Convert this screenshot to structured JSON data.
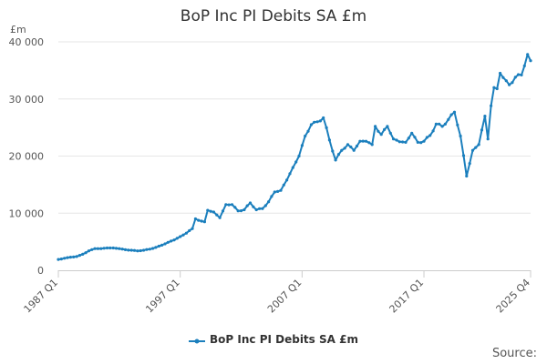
{
  "chart_data": {
    "type": "line",
    "title": "BoP Inc PI Debits SA £m",
    "ylabel": "£m",
    "ylim": [
      0,
      40000
    ],
    "yticks": [
      {
        "value": 0,
        "label": "0"
      },
      {
        "value": 10000,
        "label": "10 000"
      },
      {
        "value": 20000,
        "label": "20 000"
      },
      {
        "value": 30000,
        "label": "30 000"
      },
      {
        "value": 40000,
        "label": "40 000"
      }
    ],
    "xticks": [
      "1987 Q1",
      "1997 Q1",
      "2007 Q1",
      "2017 Q1",
      "2025 Q4"
    ],
    "color": "#1b7fbd",
    "grid": true,
    "legend_position": "bottom",
    "series": [
      {
        "name": "BoP Inc PI Debits SA £m",
        "anchors": [
          [
            "1987 Q1",
            1900
          ],
          [
            "1987 Q3",
            2100
          ],
          [
            "1988 Q1",
            2300
          ],
          [
            "1988 Q3",
            2400
          ],
          [
            "1989 Q1",
            2800
          ],
          [
            "1989 Q3",
            3400
          ],
          [
            "1990 Q1",
            3800
          ],
          [
            "1990 Q3",
            3800
          ],
          [
            "1991 Q1",
            3900
          ],
          [
            "1991 Q3",
            3900
          ],
          [
            "1992 Q1",
            3800
          ],
          [
            "1992 Q3",
            3600
          ],
          [
            "1993 Q1",
            3500
          ],
          [
            "1993 Q3",
            3400
          ],
          [
            "1994 Q1",
            3500
          ],
          [
            "1994 Q3",
            3700
          ],
          [
            "1995 Q1",
            4000
          ],
          [
            "1995 Q3",
            4400
          ],
          [
            "1996 Q1",
            4900
          ],
          [
            "1996 Q3",
            5300
          ],
          [
            "1997 Q1",
            5900
          ],
          [
            "1997 Q3",
            6500
          ],
          [
            "1998 Q1",
            7300
          ],
          [
            "1998 Q2",
            9000
          ],
          [
            "1998 Q4",
            8600
          ],
          [
            "1999 Q1",
            8500
          ],
          [
            "1999 Q2",
            10500
          ],
          [
            "1999 Q4",
            10200
          ],
          [
            "2000 Q2",
            9200
          ],
          [
            "2000 Q4",
            11500
          ],
          [
            "2001 Q2",
            11500
          ],
          [
            "2001 Q4",
            10400
          ],
          [
            "2002 Q2",
            10600
          ],
          [
            "2002 Q4",
            11800
          ],
          [
            "2003 Q2",
            10600
          ],
          [
            "2003 Q4",
            10800
          ],
          [
            "2004 Q2",
            12000
          ],
          [
            "2004 Q4",
            13700
          ],
          [
            "2005 Q2",
            14000
          ],
          [
            "2005 Q4",
            15800
          ],
          [
            "2006 Q2",
            18000
          ],
          [
            "2006 Q4",
            20000
          ],
          [
            "2007 Q2",
            23500
          ],
          [
            "2007 Q4",
            25500
          ],
          [
            "2008 Q2",
            26000
          ],
          [
            "2008 Q4",
            26700
          ],
          [
            "2009 Q2",
            22800
          ],
          [
            "2009 Q4",
            19300
          ],
          [
            "2010 Q2",
            21000
          ],
          [
            "2010 Q4",
            22000
          ],
          [
            "2011 Q2",
            21000
          ],
          [
            "2011 Q4",
            22600
          ],
          [
            "2012 Q2",
            22600
          ],
          [
            "2012 Q4",
            22000
          ],
          [
            "2013 Q1",
            25200
          ],
          [
            "2013 Q3",
            23800
          ],
          [
            "2014 Q1",
            25200
          ],
          [
            "2014 Q3",
            23000
          ],
          [
            "2015 Q1",
            22500
          ],
          [
            "2015 Q3",
            22400
          ],
          [
            "2016 Q1",
            24000
          ],
          [
            "2016 Q3",
            22400
          ],
          [
            "2017 Q1",
            22600
          ],
          [
            "2017 Q3",
            23600
          ],
          [
            "2018 Q1",
            25600
          ],
          [
            "2018 Q3",
            25200
          ],
          [
            "2019 Q1",
            26400
          ],
          [
            "2019 Q3",
            27700
          ],
          [
            "2020 Q1",
            23500
          ],
          [
            "2020 Q3",
            16500
          ],
          [
            "2021 Q1",
            21000
          ],
          [
            "2021 Q3",
            22000
          ],
          [
            "2022 Q1",
            27000
          ],
          [
            "2022 Q2",
            23000
          ],
          [
            "2022 Q3",
            28800
          ],
          [
            "2022 Q4",
            32000
          ],
          [
            "2023 Q1",
            31800
          ],
          [
            "2023 Q2",
            34500
          ],
          [
            "2023 Q4",
            33200
          ],
          [
            "2024 Q1",
            32500
          ],
          [
            "2024 Q3",
            33800
          ],
          [
            "2025 Q1",
            34200
          ],
          [
            "2025 Q2",
            35800
          ],
          [
            "2025 Q3",
            37800
          ],
          [
            "2025 Q4",
            36700
          ]
        ]
      }
    ]
  },
  "source_label": "Source:"
}
